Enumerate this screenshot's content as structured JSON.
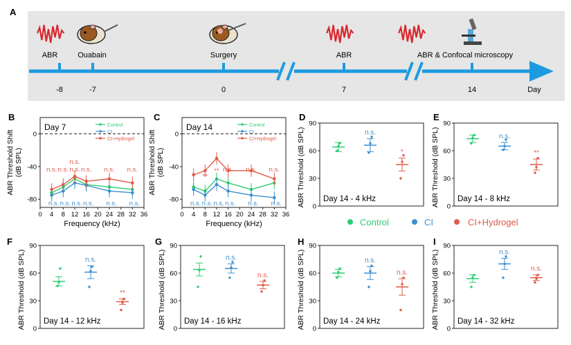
{
  "colors": {
    "control": "#2ecc71",
    "ci": "#3a8fd0",
    "hydrogel": "#e05a47",
    "timeline": "#1e9be0",
    "bg_panel": "#e8e8e8",
    "axis": "#222222"
  },
  "timeline": {
    "label": "A",
    "events": [
      {
        "label": "ABR",
        "tick": "-8",
        "icon": "abr-wave-icon"
      },
      {
        "label": "Ouabain",
        "tick": "-7",
        "icon": "guinea-pig-injection-icon"
      },
      {
        "label": "Surgery",
        "tick": "0",
        "icon": "guinea-pig-surgery-icon"
      },
      {
        "label": "ABR",
        "tick": "7",
        "icon": "abr-wave-icon"
      },
      {
        "label": "ABR & Confocal microscopy",
        "tick": "14",
        "icon": "microscope-icon"
      }
    ],
    "axis_label": "Day"
  },
  "legend": {
    "control": "Control",
    "ci": "CI",
    "hydrogel": "CI+Hydrogel"
  },
  "chart_data": [
    {
      "panel": "B",
      "type": "line",
      "title": "Day 7",
      "xlabel": "Frequency (kHz)",
      "ylabel": "ABR Threshold Shift (dB SPL)",
      "xlim": [
        0,
        36
      ],
      "ylim": [
        -90,
        20
      ],
      "xticks": [
        "0",
        "4",
        "8",
        "12",
        "16",
        "20",
        "24",
        "28",
        "32",
        "36"
      ],
      "yticks": [
        "0",
        "-40",
        "-80"
      ],
      "x": [
        4,
        8,
        12,
        16,
        24,
        32
      ],
      "series": [
        {
          "name": "Control",
          "values": [
            -72,
            -65,
            -55,
            -62,
            -65,
            -68
          ]
        },
        {
          "name": "CI",
          "values": [
            -75,
            -70,
            -60,
            -63,
            -70,
            -72
          ]
        },
        {
          "name": "CI+Hydrogel",
          "values": [
            -68,
            -62,
            -52,
            -58,
            -55,
            -60
          ]
        }
      ],
      "annotations": [
        {
          "x": 4,
          "text": "n.s.",
          "group": "hydrogel"
        },
        {
          "x": 8,
          "text": "n.s.",
          "group": "hydrogel"
        },
        {
          "x": 12,
          "text": "n.s.",
          "group": "hydrogel"
        },
        {
          "x": 12,
          "text": "n.s.",
          "group": "hydrogel"
        },
        {
          "x": 16,
          "text": "n.s.",
          "group": "hydrogel"
        },
        {
          "x": 24,
          "text": "n.s.",
          "group": "hydrogel"
        },
        {
          "x": 32,
          "text": "n.s.",
          "group": "hydrogel"
        },
        {
          "x": 4,
          "text": "n.s.",
          "group": "ci"
        },
        {
          "x": 8,
          "text": "n.s.",
          "group": "ci"
        },
        {
          "x": 12,
          "text": "n.s.",
          "group": "ci"
        },
        {
          "x": 16,
          "text": "n.s.",
          "group": "ci"
        },
        {
          "x": 24,
          "text": "n.s.",
          "group": "ci"
        },
        {
          "x": 32,
          "text": "n.s.",
          "group": "ci"
        }
      ]
    },
    {
      "panel": "C",
      "type": "line",
      "title": "Day 14",
      "xlabel": "Frequency (kHz)",
      "ylabel": "ABR Threshold Shift (dB SPL)",
      "xlim": [
        0,
        36
      ],
      "ylim": [
        -90,
        20
      ],
      "xticks": [
        "0",
        "4",
        "8",
        "12",
        "16",
        "20",
        "24",
        "28",
        "32",
        "36"
      ],
      "yticks": [
        "0",
        "-40",
        "-80"
      ],
      "x": [
        4,
        8,
        12,
        16,
        24,
        32
      ],
      "series": [
        {
          "name": "Control",
          "values": [
            -65,
            -70,
            -55,
            -60,
            -68,
            -60
          ]
        },
        {
          "name": "CI",
          "values": [
            -68,
            -75,
            -62,
            -70,
            -75,
            -78
          ]
        },
        {
          "name": "CI+Hydrogel",
          "values": [
            -50,
            -45,
            -30,
            -45,
            -45,
            -55
          ]
        }
      ],
      "annotations": [
        {
          "x": 4,
          "text": "*",
          "group": "hydrogel"
        },
        {
          "x": 8,
          "text": "**",
          "group": "hydrogel"
        },
        {
          "x": 12,
          "text": "**",
          "group": "hydrogel"
        },
        {
          "x": 16,
          "text": "n.s.",
          "group": "hydrogel"
        },
        {
          "x": 24,
          "text": "n.s.",
          "group": "hydrogel"
        },
        {
          "x": 32,
          "text": "n.s.",
          "group": "hydrogel"
        },
        {
          "x": 4,
          "text": "n.s.",
          "group": "ci"
        },
        {
          "x": 8,
          "text": "n.s.",
          "group": "ci"
        },
        {
          "x": 12,
          "text": "n.s.",
          "group": "ci"
        },
        {
          "x": 16,
          "text": "n.s.",
          "group": "ci"
        },
        {
          "x": 24,
          "text": "n.s.",
          "group": "ci"
        },
        {
          "x": 32,
          "text": "n.s.",
          "group": "ci"
        }
      ]
    },
    {
      "panel": "D",
      "type": "scatter",
      "title": "Day 14 - 4 kHz",
      "ylabel": "ABR Threshold (dB SPL)",
      "ylim": [
        0,
        90
      ],
      "yticks": [
        "0",
        "30",
        "60",
        "90"
      ],
      "groups": [
        {
          "name": "Control",
          "mean": 64,
          "err": 5,
          "points": [
            60,
            65,
            68
          ]
        },
        {
          "name": "CI",
          "mean": 66,
          "err": 7,
          "points": [
            58,
            68,
            75
          ]
        },
        {
          "name": "CI+Hydrogel",
          "mean": 45,
          "err": 7,
          "points": [
            30,
            48,
            55
          ]
        }
      ],
      "sig": [
        {
          "group": "ci",
          "text": "n.s."
        },
        {
          "group": "hydrogel",
          "text": "*"
        }
      ]
    },
    {
      "panel": "E",
      "type": "scatter",
      "title": "Day 14 - 8 kHz",
      "ylabel": "ABR Threshold (dB SPL)",
      "ylim": [
        0,
        90
      ],
      "yticks": [
        "0",
        "30",
        "60",
        "90"
      ],
      "groups": [
        {
          "name": "Control",
          "mean": 73,
          "err": 4,
          "points": [
            68,
            74,
            77
          ]
        },
        {
          "name": "CI",
          "mean": 65,
          "err": 4,
          "points": [
            61,
            65,
            72
          ]
        },
        {
          "name": "CI+Hydrogel",
          "mean": 45,
          "err": 6,
          "points": [
            36,
            42,
            52
          ]
        }
      ],
      "sig": [
        {
          "group": "ci",
          "text": "n.s."
        },
        {
          "group": "hydrogel",
          "text": "**"
        }
      ]
    },
    {
      "panel": "F",
      "type": "scatter",
      "title": "Day 14 - 12 kHz",
      "ylabel": "ABR Threshold (dB SPL)",
      "ylim": [
        0,
        90
      ],
      "yticks": [
        "0",
        "30",
        "60",
        "90"
      ],
      "groups": [
        {
          "name": "Control",
          "mean": 51,
          "err": 5,
          "points": [
            46,
            50,
            65
          ]
        },
        {
          "name": "CI",
          "mean": 61,
          "err": 7,
          "points": [
            45,
            62,
            67
          ]
        },
        {
          "name": "CI+Hydrogel",
          "mean": 29,
          "err": 3,
          "points": [
            20,
            28,
            32
          ]
        }
      ],
      "sig": [
        {
          "group": "ci",
          "text": "n.s."
        },
        {
          "group": "hydrogel",
          "text": "**"
        }
      ]
    },
    {
      "panel": "G",
      "type": "scatter",
      "title": "Day 14 - 16 kHz",
      "ylabel": "ABR Threshold (dB SPL)",
      "ylim": [
        0,
        90
      ],
      "yticks": [
        "0",
        "30",
        "60",
        "90"
      ],
      "groups": [
        {
          "name": "Control",
          "mean": 64,
          "err": 7,
          "points": [
            45,
            63,
            78
          ]
        },
        {
          "name": "CI",
          "mean": 65,
          "err": 5,
          "points": [
            55,
            66,
            72
          ]
        },
        {
          "name": "CI+Hydrogel",
          "mean": 47,
          "err": 4,
          "points": [
            40,
            47,
            52
          ]
        }
      ],
      "sig": [
        {
          "group": "ci",
          "text": "n.s."
        },
        {
          "group": "hydrogel",
          "text": "n.s."
        }
      ]
    },
    {
      "panel": "H",
      "type": "scatter",
      "title": "Day 14 - 24 kHz",
      "ylabel": "ABR Threshold (dB SPL)",
      "ylim": [
        0,
        90
      ],
      "yticks": [
        "0",
        "30",
        "60",
        "90"
      ],
      "groups": [
        {
          "name": "Control",
          "mean": 60,
          "err": 4,
          "points": [
            55,
            61,
            65
          ]
        },
        {
          "name": "CI",
          "mean": 60,
          "err": 7,
          "points": [
            45,
            62,
            68
          ]
        },
        {
          "name": "CI+Hydrogel",
          "mean": 45,
          "err": 9,
          "points": [
            20,
            48,
            55
          ]
        }
      ],
      "sig": [
        {
          "group": "ci",
          "text": "n.s."
        },
        {
          "group": "hydrogel",
          "text": "n.s."
        }
      ]
    },
    {
      "panel": "I",
      "type": "scatter",
      "title": "Day 14 - 32 kHz",
      "ylabel": "ABR Threshold (dB SPL)",
      "ylim": [
        0,
        90
      ],
      "yticks": [
        "0",
        "30",
        "60",
        "90"
      ],
      "groups": [
        {
          "name": "Control",
          "mean": 54,
          "err": 4,
          "points": [
            45,
            55,
            58
          ]
        },
        {
          "name": "CI",
          "mean": 70,
          "err": 6,
          "points": [
            55,
            70,
            78
          ]
        },
        {
          "name": "CI+Hydrogel",
          "mean": 55,
          "err": 3,
          "points": [
            50,
            54,
            58
          ]
        }
      ],
      "sig": [
        {
          "group": "ci",
          "text": "n.s."
        },
        {
          "group": "hydrogel",
          "text": "n.s."
        }
      ]
    }
  ]
}
